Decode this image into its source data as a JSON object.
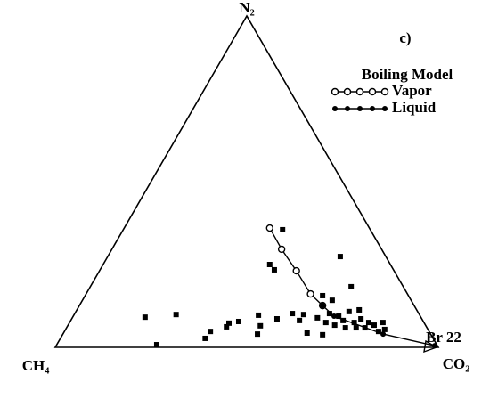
{
  "chart_data": {
    "type": "ternary",
    "title": "c)",
    "axes": {
      "top": "N₂",
      "left": "CH₄",
      "right": "CO₂"
    },
    "lim": [
      0,
      100
    ],
    "legend_title": "Boiling Model",
    "annotation": "Br 22",
    "series": [
      {
        "name": "Vapor",
        "color": "#000000",
        "marker": "open-circle",
        "n2": [
          36.0,
          29.6,
          23.1,
          16.1,
          12.6
        ],
        "co2": [
          38.0,
          44.3,
          51.4,
          58.6,
          63.5
        ]
      },
      {
        "name": "Liquid",
        "color": "#000000",
        "marker": "filled-circle",
        "n2": [
          12.6,
          9.4,
          4.0,
          0.5
        ],
        "co2": [
          63.5,
          68.1,
          83.6,
          98.8
        ]
      }
    ],
    "samples": {
      "color": "#000000",
      "n2": [
        35.5,
        25.0,
        23.4,
        27.4,
        15.6,
        14.2,
        18.3,
        11.3,
        9.1,
        9.9,
        0.8,
        2.7,
        4.8,
        7.3,
        7.8,
        6.2,
        9.7,
        6.5,
        4.0,
        8.6,
        10.2,
        8.1,
        9.9,
        4.3,
        8.9,
        3.8,
        10.2,
        9.4,
        8.1,
        10.8,
        7.5,
        8.6,
        5.9,
        6.7,
        4.8,
        5.4,
        7.5,
        6.7,
        5.9,
        5.9,
        7.5,
        7.5
      ],
      "co2": [
        41.6,
        43.5,
        45.5,
        60.7,
        62.0,
        65.2,
        68.1,
        73.7,
        18.9,
        26.6,
        26.1,
        37.8,
        38.1,
        41.7,
        44.0,
        41.6,
        48.2,
        50.3,
        50.8,
        53.6,
        56.8,
        59.7,
        59.9,
        63.6,
        64.0,
        67.9,
        66.5,
        69.3,
        71.1,
        71.3,
        74.3,
        75.5,
        77.9,
        79.9,
        82.0,
        83.3,
        66.9,
        69.6,
        72.8,
        75.6,
        78.1,
        81.8
      ]
    }
  }
}
